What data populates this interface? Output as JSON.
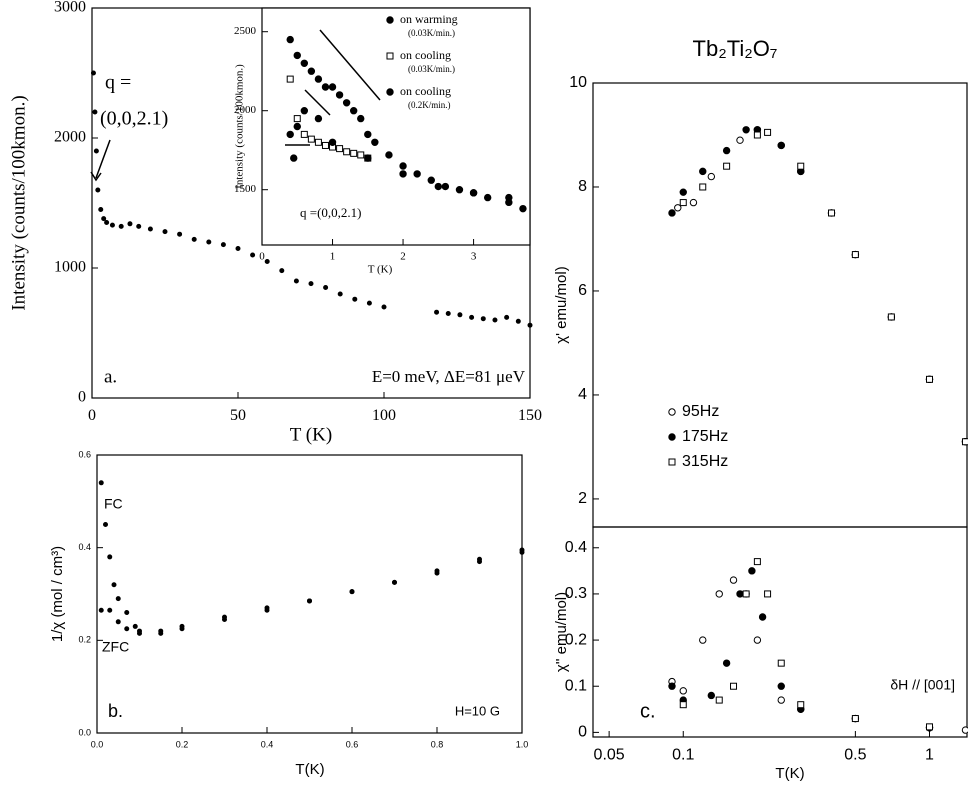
{
  "chart_data": [
    {
      "type": "scatter",
      "xlabel": "T (K)",
      "ylabel": "Intensity (counts/100kmon.)",
      "xlim": [
        0,
        150
      ],
      "ylim": [
        0,
        3000
      ],
      "xticks": [
        0,
        50,
        100,
        150
      ],
      "yticks": [
        0,
        1000,
        2000,
        3000
      ],
      "annotations": [
        "q =",
        "(0,0,2.1)",
        "a.",
        "E=0 meV, ΔE=81 μeV"
      ],
      "series": [
        {
          "color": "#000000",
          "marker": "dot",
          "x": [
            0.5,
            1,
            1.5,
            2,
            3,
            4,
            5,
            7,
            10,
            13,
            16,
            20,
            25,
            30,
            35,
            40,
            45,
            50,
            55,
            60,
            65,
            70,
            75,
            80,
            85,
            90,
            95,
            100,
            118,
            122,
            126,
            130,
            134,
            138,
            142,
            146,
            150
          ],
          "values": [
            2500,
            2200,
            1900,
            1600,
            1450,
            1380,
            1350,
            1330,
            1320,
            1340,
            1320,
            1300,
            1280,
            1260,
            1220,
            1200,
            1180,
            1150,
            1100,
            1050,
            980,
            900,
            880,
            850,
            800,
            760,
            730,
            700,
            660,
            650,
            640,
            620,
            610,
            600,
            620,
            590,
            560
          ]
        }
      ]
    },
    {
      "type": "scatter",
      "xlabel": "T (K)",
      "ylabel": "Intensity (counts/100kmon.)",
      "xlim": [
        0,
        3.8
      ],
      "ylim": [
        1150,
        2650
      ],
      "xticks": [
        0,
        1,
        2,
        3
      ],
      "yticks": [
        1500,
        2000,
        2500
      ],
      "annotations": [
        "q =(0,0,2.1)"
      ],
      "series": [
        {
          "name": "on warming",
          "rate": "(0.03K/min.)",
          "color": "#000000",
          "marker": "filled-circle",
          "x": [
            0.4,
            0.5,
            0.6,
            0.7,
            0.8,
            0.9,
            1.0,
            1.1,
            1.2,
            1.3,
            1.4,
            1.5,
            1.6,
            1.8,
            2.0,
            2.2,
            2.4,
            2.6,
            2.8,
            3.0,
            3.2,
            3.5
          ],
          "values": [
            2450,
            2350,
            2300,
            2250,
            2200,
            2150,
            2150,
            2100,
            2050,
            2000,
            1950,
            1850,
            1800,
            1720,
            1650,
            1600,
            1560,
            1520,
            1500,
            1480,
            1450,
            1420
          ]
        },
        {
          "name": "on cooling",
          "rate": "(0.03K/min.)",
          "color": "#000000",
          "marker": "open-square",
          "x": [
            0.4,
            0.5,
            0.6,
            0.7,
            0.8,
            0.9,
            1.0,
            1.1,
            1.2,
            1.3,
            1.4,
            1.5
          ],
          "values": [
            2200,
            1950,
            1850,
            1820,
            1800,
            1780,
            1770,
            1760,
            1740,
            1730,
            1720,
            1700
          ]
        },
        {
          "name": "on cooling",
          "rate": "(0.2K/min.)",
          "color": "#000000",
          "marker": "filled-circle",
          "x": [
            0.4,
            0.45,
            0.5,
            0.6,
            0.8,
            1.0,
            1.5,
            2.0,
            2.5,
            3.0,
            3.5,
            3.7
          ],
          "values": [
            1850,
            1700,
            1900,
            2000,
            1950,
            1800,
            1700,
            1600,
            1520,
            1480,
            1450,
            1380
          ]
        }
      ]
    },
    {
      "type": "scatter",
      "xlabel": "T(K)",
      "ylabel": "1/χ (mol / cm³)",
      "xlim": [
        0,
        1
      ],
      "ylim": [
        0,
        0.6
      ],
      "xticks": [
        {
          "value": 0,
          "label": "0.0"
        },
        0.2,
        0.4,
        0.6,
        0.8,
        {
          "value": 1,
          "label": "1.0"
        }
      ],
      "yticks": [
        {
          "value": 0,
          "label": "0.0"
        },
        0.2,
        0.4,
        0.6
      ],
      "annotations": [
        "b.",
        "H=10 G"
      ],
      "series": [
        {
          "name": "FC",
          "color": "#000000",
          "marker": "dot",
          "x": [
            0.01,
            0.02,
            0.03,
            0.04,
            0.05,
            0.07,
            0.09,
            0.1,
            0.15,
            0.2,
            0.3,
            0.4,
            0.5,
            0.6,
            0.7,
            0.8,
            0.9,
            1.0
          ],
          "values": [
            0.54,
            0.45,
            0.38,
            0.32,
            0.29,
            0.26,
            0.23,
            0.22,
            0.22,
            0.23,
            0.25,
            0.27,
            0.285,
            0.305,
            0.325,
            0.35,
            0.375,
            0.395
          ]
        },
        {
          "name": "ZFC",
          "color": "#000000",
          "marker": "dot",
          "x": [
            0.01,
            0.03,
            0.05,
            0.07,
            0.1,
            0.15,
            0.2,
            0.3,
            0.4,
            0.5,
            0.6,
            0.7,
            0.8,
            0.9,
            1.0
          ],
          "values": [
            0.265,
            0.265,
            0.24,
            0.225,
            0.215,
            0.215,
            0.225,
            0.245,
            0.265,
            0.285,
            0.305,
            0.325,
            0.345,
            0.37,
            0.39
          ]
        }
      ]
    },
    {
      "type": "scatter",
      "title": "Tb₂Ti₂O₇",
      "ylabel": "χ'  emu/mol)",
      "xlog": true,
      "xlim": [
        0.043,
        1.42
      ],
      "ylim": [
        1.46,
        10
      ],
      "yticks": [
        2,
        4,
        6,
        8,
        10
      ],
      "series": [
        {
          "name": "95Hz",
          "color": "#000000",
          "marker": "open-circle",
          "x": [
            0.095,
            0.11,
            0.13,
            0.17,
            0.2,
            0.25,
            0.3,
            0.4,
            0.5,
            0.7,
            1.0,
            1.4
          ],
          "values": [
            7.6,
            7.7,
            8.2,
            8.9,
            9.1,
            8.8,
            8.3,
            7.5,
            6.7,
            5.5,
            4.3,
            3.1
          ]
        },
        {
          "name": "175Hz",
          "color": "#000000",
          "marker": "filled-circle",
          "x": [
            0.09,
            0.1,
            0.12,
            0.15,
            0.18,
            0.2,
            0.25,
            0.3,
            0.4,
            0.5,
            0.7,
            1.0,
            1.4
          ],
          "values": [
            7.5,
            7.9,
            8.3,
            8.7,
            9.1,
            9.1,
            8.8,
            8.3,
            7.5,
            6.7,
            5.5,
            4.3,
            3.1
          ]
        },
        {
          "name": "315Hz",
          "color": "#000000",
          "marker": "open-square",
          "x": [
            0.1,
            0.12,
            0.15,
            0.2,
            0.22,
            0.3,
            0.4,
            0.5,
            0.7,
            1.0,
            1.4
          ],
          "values": [
            7.7,
            8.0,
            8.4,
            9.0,
            9.05,
            8.4,
            7.5,
            6.7,
            5.5,
            4.3,
            3.1
          ]
        }
      ]
    },
    {
      "type": "scatter",
      "xlabel": "T(K)",
      "ylabel": "χ''  emu/mol)",
      "xlog": true,
      "xlim": [
        0.043,
        1.42
      ],
      "ylim": [
        -0.01,
        0.445
      ],
      "xticks": [
        0.05,
        0.1,
        0.5,
        1
      ],
      "yticks": [
        0,
        0.1,
        0.2,
        0.3,
        0.4
      ],
      "annotations": [
        "δH // [001]",
        "c."
      ],
      "series": [
        {
          "color": "#000000",
          "marker": "open-circle",
          "x": [
            0.09,
            0.1,
            0.12,
            0.14,
            0.16,
            0.18,
            0.2,
            0.25,
            0.3,
            0.5,
            1,
            1.4
          ],
          "values": [
            0.11,
            0.09,
            0.2,
            0.3,
            0.33,
            0.3,
            0.2,
            0.07,
            0.05,
            0.03,
            0.01,
            0.005
          ]
        },
        {
          "color": "#000000",
          "marker": "filled-circle",
          "x": [
            0.09,
            0.1,
            0.13,
            0.15,
            0.17,
            0.19,
            0.21,
            0.25,
            0.3,
            0.5,
            1
          ],
          "values": [
            0.1,
            0.07,
            0.08,
            0.15,
            0.3,
            0.35,
            0.25,
            0.1,
            0.05,
            0.03,
            0.01
          ]
        },
        {
          "color": "#000000",
          "marker": "open-square",
          "x": [
            0.1,
            0.14,
            0.16,
            0.18,
            0.2,
            0.22,
            0.25,
            0.3,
            0.5,
            1
          ],
          "values": [
            0.06,
            0.07,
            0.1,
            0.3,
            0.37,
            0.3,
            0.15,
            0.06,
            0.03,
            0.012
          ]
        }
      ]
    }
  ]
}
